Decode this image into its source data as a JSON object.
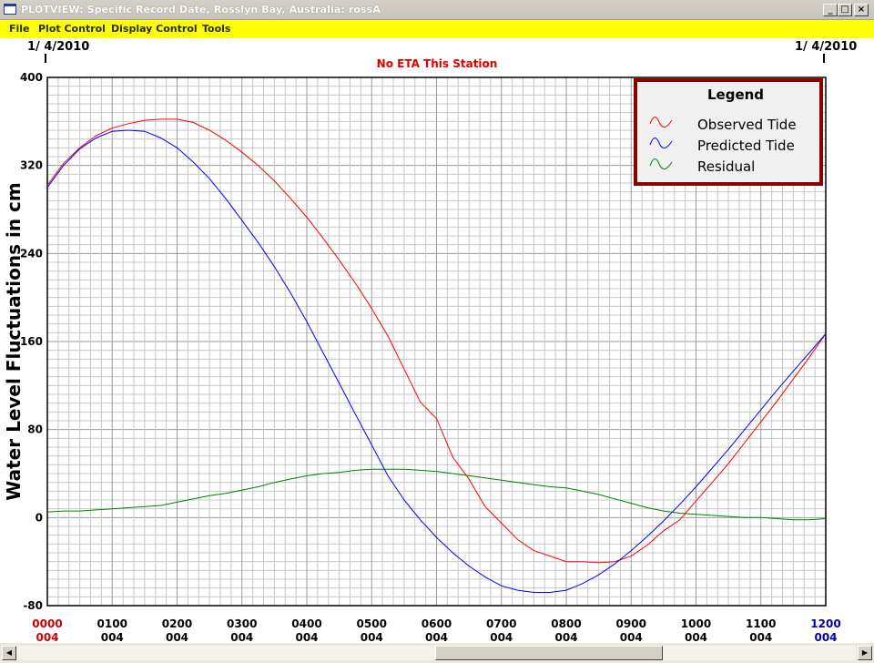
{
  "window": {
    "title": "PLOTVIEW: Specific Record Date, Rosslyn Bay, Australia: rossA",
    "minimize_glyph": "_",
    "maximize_glyph": "□",
    "close_glyph": "×"
  },
  "menu": {
    "items": [
      "File",
      "Plot Control",
      "Display Control",
      "Tools"
    ]
  },
  "plot": {
    "date_left": "1/ 4/2010",
    "date_right": "1/ 4/2010",
    "status": "No ETA This Station",
    "colors": {
      "observed": "#ff0000",
      "predicted": "#0000ff",
      "residual": "#008000",
      "legend_border": "#8b0000",
      "status": "#e00000"
    }
  },
  "legend": {
    "title": "Legend",
    "items": [
      "Observed Tide",
      "Predicted Tide",
      "Residual"
    ]
  },
  "chart_data": {
    "type": "line",
    "title": "",
    "ylabel": "Water Level Fluctuations in cm",
    "xlabel": "",
    "ylim": [
      -80,
      400
    ],
    "xlim": [
      0,
      12
    ],
    "yticks": [
      -80,
      0,
      80,
      160,
      240,
      320,
      400
    ],
    "xtick_labels": [
      "0000",
      "0100",
      "0200",
      "0300",
      "0400",
      "0500",
      "0600",
      "0700",
      "0800",
      "0900",
      "1000",
      "1100",
      "1200"
    ],
    "xtick_sublabels": [
      "004",
      "004",
      "004",
      "004",
      "004",
      "004",
      "004",
      "004",
      "004",
      "004",
      "004",
      "004",
      "004"
    ],
    "grid": true,
    "legend_position": "top-right",
    "series": [
      {
        "name": "Observed Tide",
        "x": [
          0,
          0.25,
          0.5,
          0.75,
          1.0,
          1.25,
          1.5,
          1.75,
          2.0,
          2.25,
          2.5,
          2.75,
          3.0,
          3.25,
          3.5,
          3.75,
          4.0,
          4.25,
          4.5,
          4.75,
          5.0,
          5.25,
          5.5,
          5.75,
          6.0,
          6.25,
          6.5,
          6.75,
          7.0,
          7.25,
          7.5,
          7.75,
          8.0,
          8.25,
          8.5,
          8.75,
          9.0,
          9.25,
          9.5,
          9.75,
          10.0,
          10.25,
          10.5,
          10.75,
          11.0,
          11.25,
          11.5,
          11.75,
          12.0
        ],
        "y": [
          302,
          322,
          336,
          347,
          354,
          358,
          361,
          362,
          362,
          359,
          352,
          343,
          332,
          320,
          306,
          290,
          273,
          254,
          234,
          213,
          190,
          165,
          135,
          105,
          90,
          55,
          35,
          10,
          -5,
          -20,
          -30,
          -35,
          -40,
          -40,
          -41,
          -40,
          -35,
          -25,
          -12,
          -2,
          15,
          32,
          49,
          68,
          87,
          106,
          126,
          146,
          167
        ]
      },
      {
        "name": "Predicted Tide",
        "x": [
          0,
          0.25,
          0.5,
          0.75,
          1.0,
          1.25,
          1.5,
          1.75,
          2.0,
          2.25,
          2.5,
          2.75,
          3.0,
          3.25,
          3.5,
          3.75,
          4.0,
          4.25,
          4.5,
          4.75,
          5.0,
          5.25,
          5.5,
          5.75,
          6.0,
          6.25,
          6.5,
          6.75,
          7.0,
          7.25,
          7.5,
          7.75,
          8.0,
          8.25,
          8.5,
          8.75,
          9.0,
          9.25,
          9.5,
          9.75,
          10.0,
          10.25,
          10.5,
          10.75,
          11.0,
          11.25,
          11.5,
          11.75,
          12.0
        ],
        "y": [
          300,
          320,
          335,
          345,
          351,
          352,
          351,
          345,
          336,
          323,
          308,
          290,
          270,
          250,
          228,
          204,
          178,
          150,
          122,
          94,
          66,
          38,
          16,
          -2,
          -18,
          -32,
          -44,
          -54,
          -62,
          -66,
          -68,
          -68,
          -66,
          -60,
          -52,
          -42,
          -30,
          -17,
          -3,
          12,
          28,
          45,
          62,
          80,
          98,
          116,
          133,
          150,
          167
        ]
      },
      {
        "name": "Residual",
        "x": [
          0,
          0.25,
          0.5,
          0.75,
          1.0,
          1.25,
          1.5,
          1.75,
          2.0,
          2.25,
          2.5,
          2.75,
          3.0,
          3.25,
          3.5,
          3.75,
          4.0,
          4.25,
          4.5,
          4.75,
          5.0,
          5.25,
          5.5,
          5.75,
          6.0,
          6.25,
          6.5,
          6.75,
          7.0,
          7.25,
          7.5,
          7.75,
          8.0,
          8.25,
          8.5,
          8.75,
          9.0,
          9.25,
          9.5,
          9.75,
          10.0,
          10.25,
          10.5,
          10.75,
          11.0,
          11.25,
          11.5,
          11.75,
          12.0
        ],
        "y": [
          5,
          6,
          6,
          7,
          8,
          9,
          10,
          11,
          14,
          17,
          20,
          22,
          25,
          28,
          32,
          35,
          38,
          40,
          41,
          43,
          44,
          44,
          44,
          43,
          42,
          40,
          38,
          36,
          34,
          32,
          30,
          28,
          27,
          24,
          21,
          17,
          13,
          9,
          6,
          4,
          3,
          2,
          1,
          0,
          0,
          -1,
          -2,
          -2,
          -1
        ]
      }
    ]
  }
}
